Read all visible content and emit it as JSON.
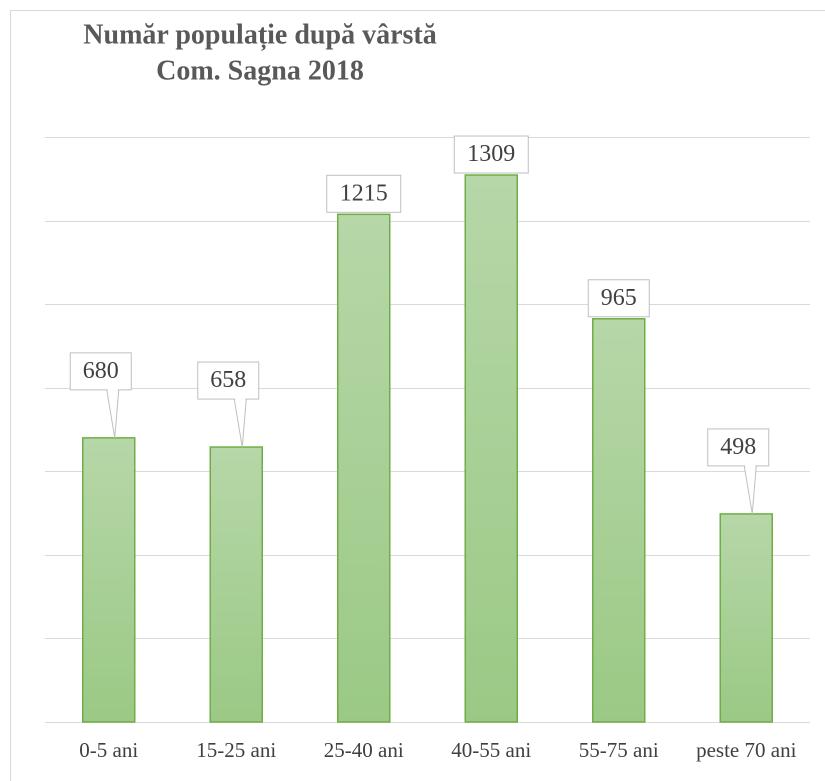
{
  "chart_data": {
    "type": "bar",
    "title": "Număr populație după vârstă",
    "subtitle": "Com. Sagna 2018",
    "categories": [
      "0-5 ani",
      "15-25 ani",
      "25-40 ani",
      "40-55 ani",
      "55-75 ani",
      "peste 70 ani"
    ],
    "values": [
      680,
      658,
      1215,
      1309,
      965,
      498
    ],
    "color": "#70ad47",
    "ylim": [
      0,
      1400
    ],
    "yticks": [
      0,
      200,
      400,
      600,
      800,
      1000,
      1200,
      1400
    ],
    "grid": true
  }
}
